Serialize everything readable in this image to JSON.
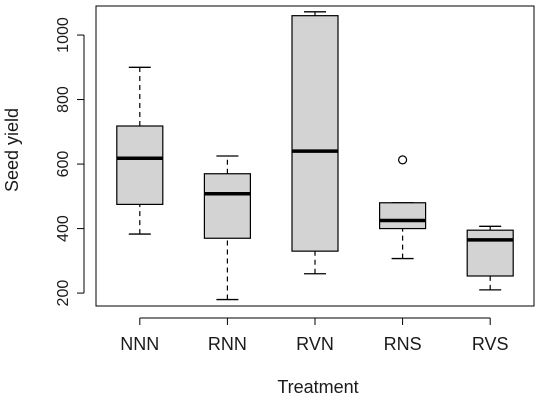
{
  "chart_data": {
    "type": "boxplot",
    "title": "",
    "xlabel": "Treatment",
    "ylabel": "Seed yield",
    "ylim": [
      160,
      1090
    ],
    "yticks": [
      200,
      400,
      600,
      800,
      1000
    ],
    "categories": [
      "NNN",
      "RNN",
      "RVN",
      "RNS",
      "RVS"
    ],
    "boxes": [
      {
        "category": "NNN",
        "whisker_low": 383,
        "q1": 475,
        "median": 618,
        "q3": 718,
        "whisker_high": 900,
        "outliers": []
      },
      {
        "category": "RNN",
        "whisker_low": 180,
        "q1": 370,
        "median": 508,
        "q3": 570,
        "whisker_high": 625,
        "outliers": []
      },
      {
        "category": "RVN",
        "whisker_low": 260,
        "q1": 330,
        "median": 640,
        "q3": 1060,
        "whisker_high": 1072,
        "outliers": []
      },
      {
        "category": "RNS",
        "whisker_low": 307,
        "q1": 400,
        "median": 425,
        "q3": 480,
        "whisker_high": 480,
        "outliers": [
          613
        ]
      },
      {
        "category": "RVS",
        "whisker_low": 210,
        "q1": 253,
        "median": 365,
        "q3": 395,
        "whisker_high": 407,
        "outliers": []
      }
    ],
    "grid": false,
    "box_fill": "#d3d3d3",
    "line_color": "#000000"
  }
}
